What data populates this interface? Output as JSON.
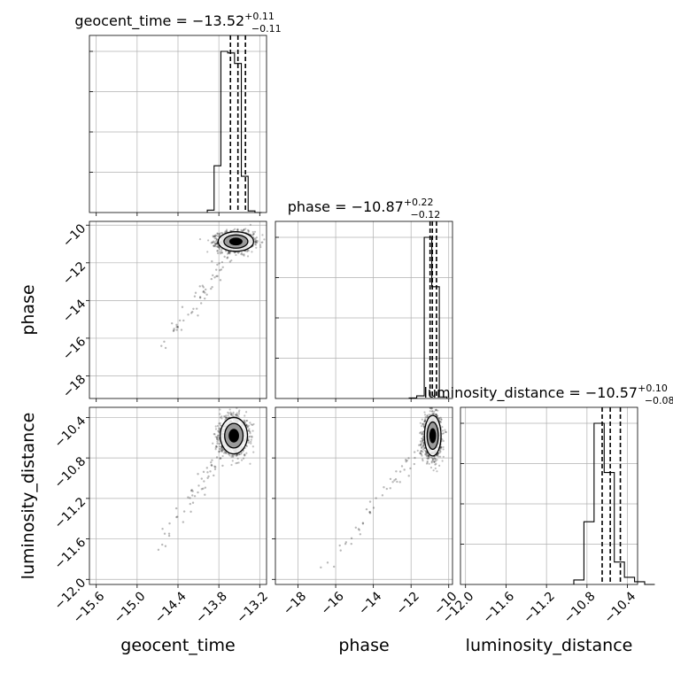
{
  "chart_data": {
    "type": "corner",
    "parameters": [
      "geocent_time",
      "phase",
      "luminosity_distance"
    ],
    "ranges": {
      "geocent_time": [
        -15.7,
        -13.1
      ],
      "phase": [
        -19.2,
        -9.8
      ],
      "luminosity_distance": [
        -12.05,
        -10.3
      ]
    },
    "ticks": {
      "geocent_time": [
        {
          "v": -15.6,
          "label": "−15.6"
        },
        {
          "v": -15.0,
          "label": "−15.0"
        },
        {
          "v": -14.4,
          "label": "−14.4"
        },
        {
          "v": -13.8,
          "label": "−13.8"
        },
        {
          "v": -13.2,
          "label": "−13.2"
        }
      ],
      "phase": [
        {
          "v": -18,
          "label": "−18"
        },
        {
          "v": -16,
          "label": "−16"
        },
        {
          "v": -14,
          "label": "−14"
        },
        {
          "v": -12,
          "label": "−12"
        },
        {
          "v": -10,
          "label": "−10"
        }
      ],
      "luminosity_distance": [
        {
          "v": -12.0,
          "label": "−12.0"
        },
        {
          "v": -11.6,
          "label": "−11.6"
        },
        {
          "v": -11.2,
          "label": "−11.2"
        },
        {
          "v": -10.8,
          "label": "−10.8"
        },
        {
          "v": -10.4,
          "label": "−10.4"
        }
      ]
    },
    "marginals": [
      {
        "param": "geocent_time",
        "title_main": "geocent_time = −13.52",
        "plus": "+0.11",
        "minus": "−0.11",
        "quantiles": [
          -13.63,
          -13.52,
          -13.41
        ],
        "bin_edges": [
          -13.97,
          -13.87,
          -13.77,
          -13.67,
          -13.57,
          -13.47,
          -13.37,
          -13.27,
          -13.17
        ],
        "counts": [
          3,
          58,
          200,
          198,
          185,
          45,
          2,
          0
        ]
      },
      {
        "param": "phase",
        "title_main": "phase = −10.87",
        "plus": "+0.22",
        "minus": "−0.12",
        "quantiles": [
          -10.99,
          -10.87,
          -10.65
        ],
        "bin_edges": [
          -12.1,
          -11.7,
          -11.3,
          -10.9,
          -10.5,
          -10.1
        ],
        "counts": [
          1,
          5,
          310,
          215,
          3
        ]
      },
      {
        "param": "luminosity_distance",
        "title_main": "luminosity_distance = −10.57",
        "plus": "+0.10",
        "minus": "−0.08",
        "quantiles": [
          -10.65,
          -10.57,
          -10.47
        ],
        "bin_edges": [
          -10.93,
          -10.83,
          -10.73,
          -10.63,
          -10.53,
          -10.43,
          -10.33,
          -10.23,
          -10.13
        ],
        "counts": [
          5,
          70,
          180,
          125,
          25,
          8,
          3,
          0
        ]
      }
    ],
    "joint": [
      {
        "x": "geocent_time",
        "y": "phase",
        "center": [
          -13.55,
          -10.87
        ],
        "spread": [
          0.13,
          0.26
        ],
        "tail_to": [
          -14.6,
          -16.6
        ]
      },
      {
        "x": "geocent_time",
        "y": "luminosity_distance",
        "center": [
          -13.58,
          -10.58
        ],
        "spread": [
          0.1,
          0.09
        ],
        "tail_to": [
          -14.7,
          -11.7
        ]
      },
      {
        "x": "phase",
        "y": "luminosity_distance",
        "center": [
          -10.85,
          -10.58
        ],
        "spread": [
          0.22,
          0.1
        ],
        "tail_to": [
          -16.6,
          -11.9
        ]
      }
    ],
    "grid": true
  }
}
